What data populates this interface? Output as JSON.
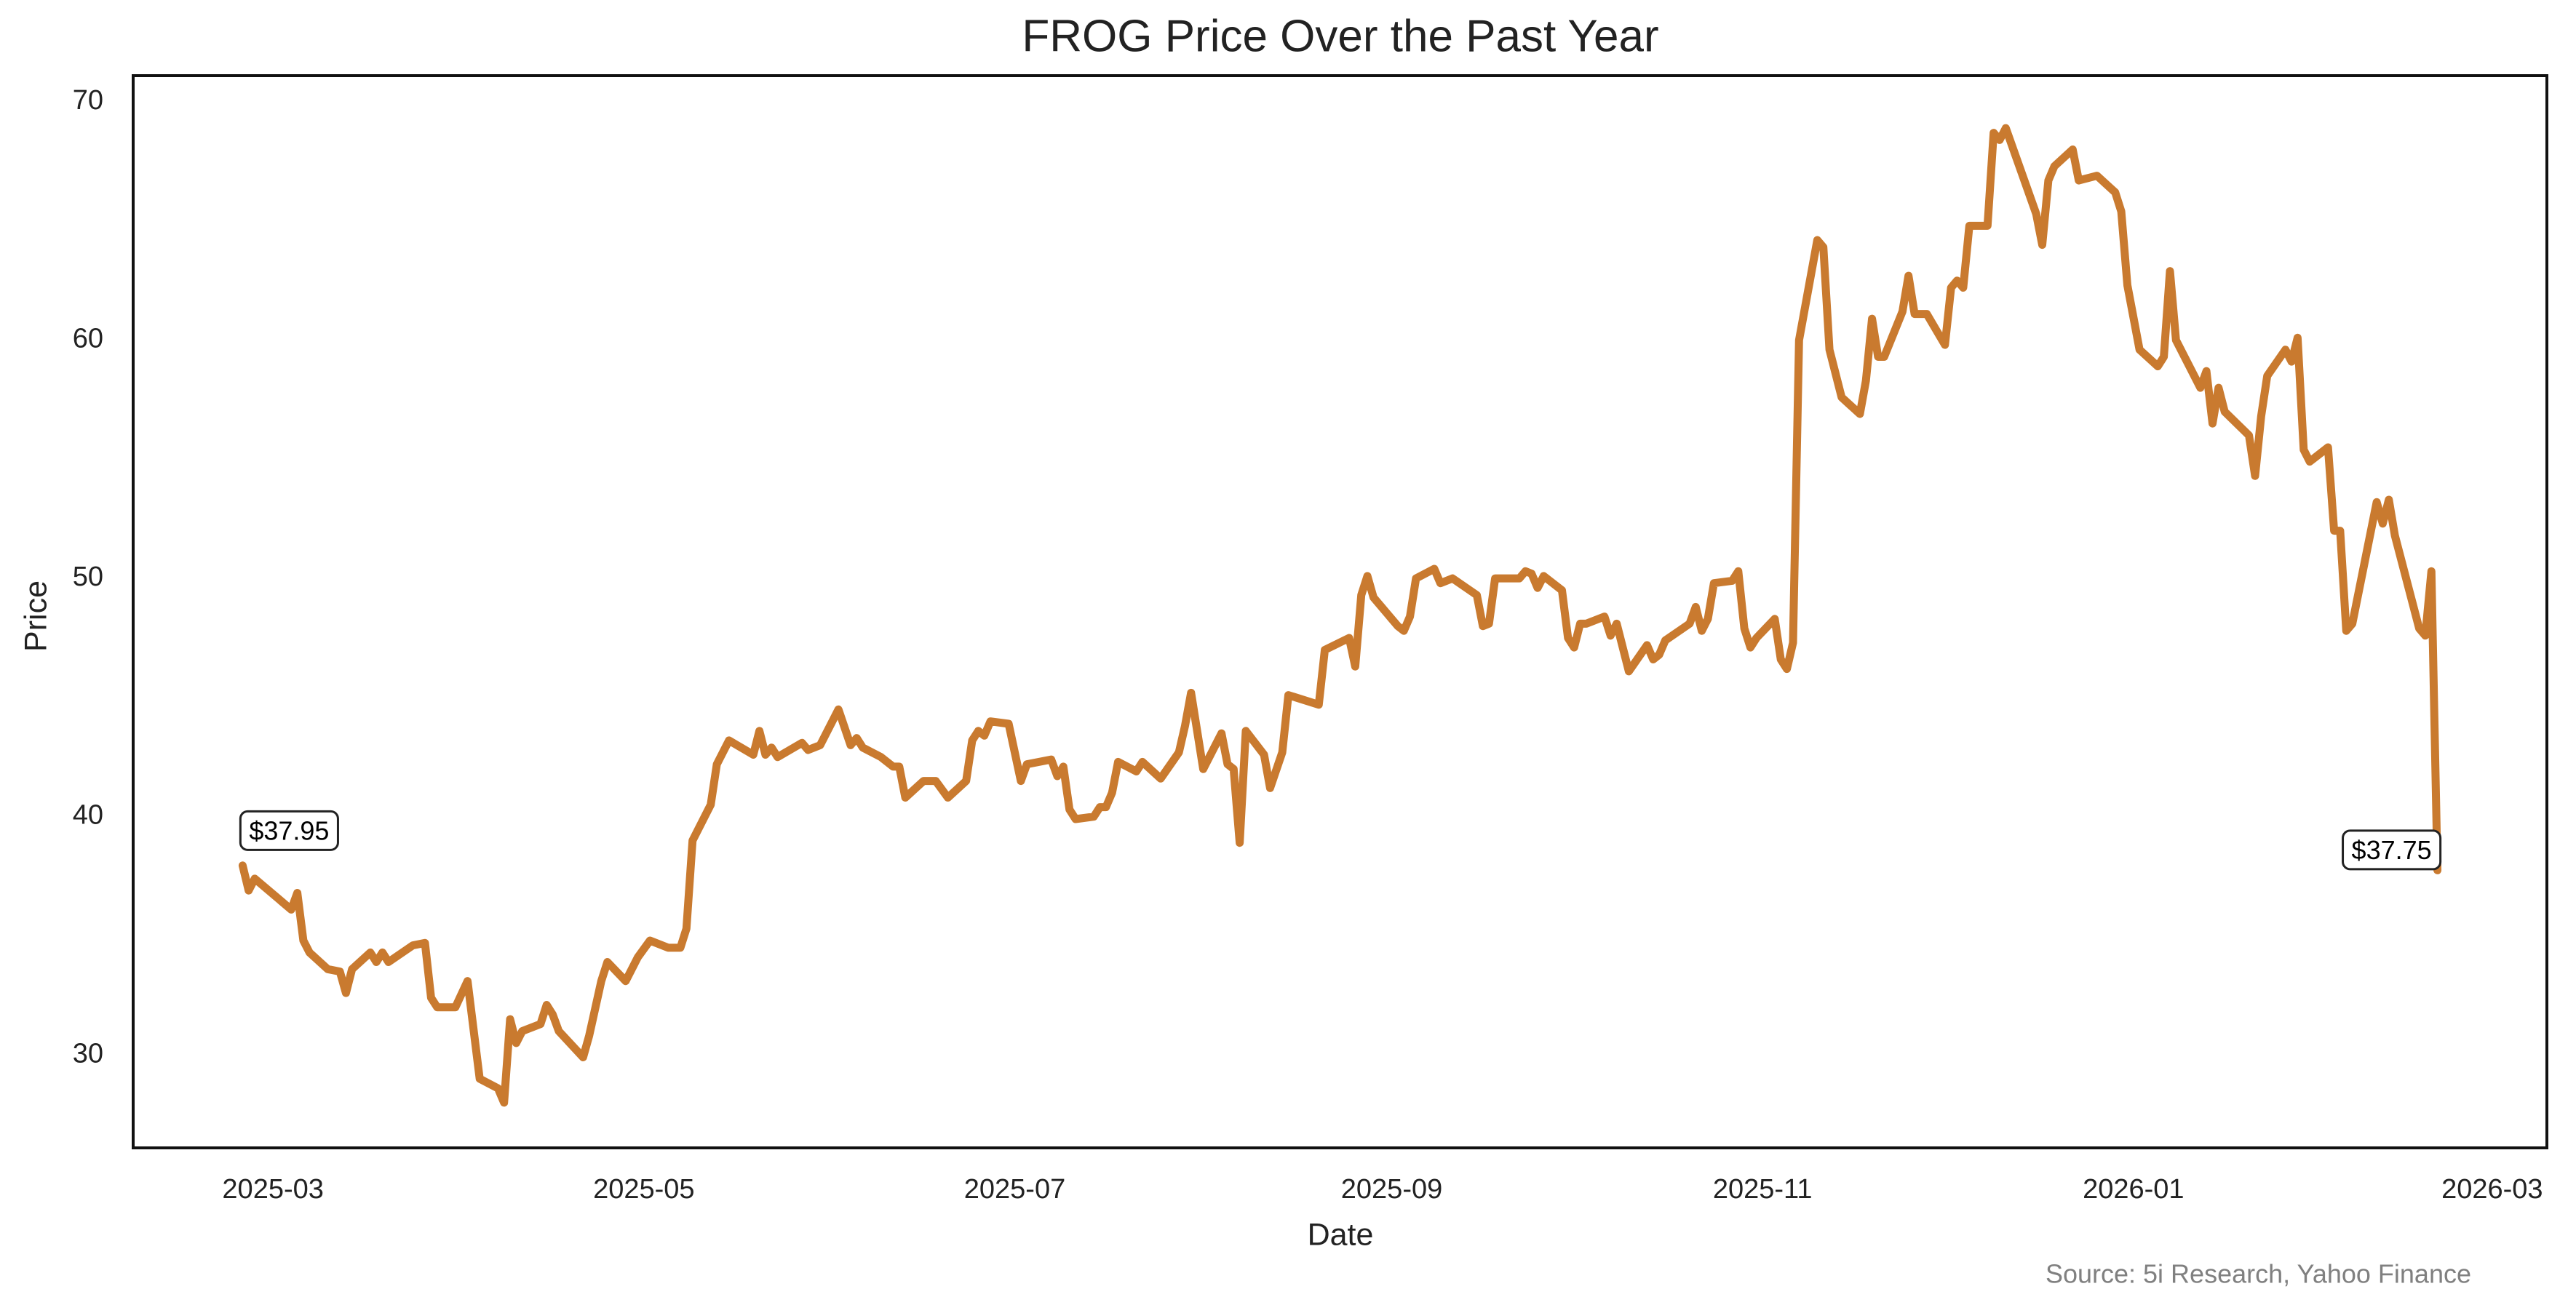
{
  "chart_data": {
    "type": "line",
    "title": "FROG Price Over the Past Year",
    "x_label": "Date",
    "y_label": "Price",
    "source": "Source: 5i Research, Yahoo Finance",
    "grid": false,
    "xlim": [
      "2025-02-06",
      "2026-03-10"
    ],
    "ylim": [
      26.1,
      71.1
    ],
    "xticks": [
      {
        "value": "2025-03-01",
        "label": "2025-03"
      },
      {
        "value": "2025-05-01",
        "label": "2025-05"
      },
      {
        "value": "2025-07-01",
        "label": "2025-07"
      },
      {
        "value": "2025-09-01",
        "label": "2025-09"
      },
      {
        "value": "2025-11-01",
        "label": "2025-11"
      },
      {
        "value": "2026-01-01",
        "label": "2026-01"
      },
      {
        "value": "2026-03-01",
        "label": "2026-03"
      }
    ],
    "yticks": [
      30,
      40,
      50,
      60,
      70
    ],
    "x": [
      "2025-02-24",
      "2025-02-25",
      "2025-02-26",
      "2025-03-04",
      "2025-03-05",
      "2025-03-06",
      "2025-03-07",
      "2025-03-10",
      "2025-03-12",
      "2025-03-13",
      "2025-03-14",
      "2025-03-17",
      "2025-03-18",
      "2025-03-19",
      "2025-03-20",
      "2025-03-24",
      "2025-03-26",
      "2025-03-27",
      "2025-03-28",
      "2025-03-31",
      "2025-04-02",
      "2025-04-04",
      "2025-04-07",
      "2025-04-08",
      "2025-04-09",
      "2025-04-10",
      "2025-04-11",
      "2025-04-14",
      "2025-04-15",
      "2025-04-16",
      "2025-04-17",
      "2025-04-21",
      "2025-04-22",
      "2025-04-24",
      "2025-04-25",
      "2025-04-28",
      "2025-04-30",
      "2025-05-02",
      "2025-05-05",
      "2025-05-07",
      "2025-05-08",
      "2025-05-09",
      "2025-05-12",
      "2025-05-13",
      "2025-05-15",
      "2025-05-19",
      "2025-05-20",
      "2025-05-21",
      "2025-05-22",
      "2025-05-23",
      "2025-05-27",
      "2025-05-28",
      "2025-05-30",
      "2025-06-02",
      "2025-06-04",
      "2025-06-05",
      "2025-06-06",
      "2025-06-09",
      "2025-06-11",
      "2025-06-12",
      "2025-06-13",
      "2025-06-16",
      "2025-06-17",
      "2025-06-18",
      "2025-06-20",
      "2025-06-23",
      "2025-06-24",
      "2025-06-25",
      "2025-06-26",
      "2025-06-27",
      "2025-06-30",
      "2025-07-02",
      "2025-07-03",
      "2025-07-07",
      "2025-07-08",
      "2025-07-09",
      "2025-07-10",
      "2025-07-11",
      "2025-07-14",
      "2025-07-15",
      "2025-07-16",
      "2025-07-17",
      "2025-07-18",
      "2025-07-21",
      "2025-07-22",
      "2025-07-25",
      "2025-07-28",
      "2025-07-29",
      "2025-07-30",
      "2025-08-01",
      "2025-08-04",
      "2025-08-05",
      "2025-08-06",
      "2025-08-07",
      "2025-08-08",
      "2025-08-11",
      "2025-08-12",
      "2025-08-14",
      "2025-08-15",
      "2025-08-20",
      "2025-08-21",
      "2025-08-25",
      "2025-08-26",
      "2025-08-27",
      "2025-08-28",
      "2025-08-29",
      "2025-09-02",
      "2025-09-03",
      "2025-09-04",
      "2025-09-05",
      "2025-09-08",
      "2025-09-09",
      "2025-09-11",
      "2025-09-15",
      "2025-09-16",
      "2025-09-17",
      "2025-09-18",
      "2025-09-22",
      "2025-09-23",
      "2025-09-24",
      "2025-09-25",
      "2025-09-26",
      "2025-09-29",
      "2025-09-30",
      "2025-10-01",
      "2025-10-02",
      "2025-10-03",
      "2025-10-06",
      "2025-10-07",
      "2025-10-08",
      "2025-10-10",
      "2025-10-13",
      "2025-10-14",
      "2025-10-15",
      "2025-10-16",
      "2025-10-20",
      "2025-10-21",
      "2025-10-22",
      "2025-10-23",
      "2025-10-24",
      "2025-10-27",
      "2025-10-28",
      "2025-10-29",
      "2025-10-30",
      "2025-10-31",
      "2025-11-03",
      "2025-11-04",
      "2025-11-05",
      "2025-11-06",
      "2025-11-07",
      "2025-11-10",
      "2025-11-11",
      "2025-11-12",
      "2025-11-14",
      "2025-11-17",
      "2025-11-18",
      "2025-11-19",
      "2025-11-20",
      "2025-11-21",
      "2025-11-24",
      "2025-11-25",
      "2025-11-26",
      "2025-11-28",
      "2025-12-01",
      "2025-12-02",
      "2025-12-03",
      "2025-12-04",
      "2025-12-05",
      "2025-12-08",
      "2025-12-09",
      "2025-12-10",
      "2025-12-11",
      "2025-12-16",
      "2025-12-17",
      "2025-12-18",
      "2025-12-19",
      "2025-12-22",
      "2025-12-23",
      "2025-12-26",
      "2025-12-29",
      "2025-12-30",
      "2025-12-31",
      "2026-01-02",
      "2026-01-05",
      "2026-01-06",
      "2026-01-07",
      "2026-01-08",
      "2026-01-12",
      "2026-01-13",
      "2026-01-14",
      "2026-01-15",
      "2026-01-16",
      "2026-01-20",
      "2026-01-21",
      "2026-01-22",
      "2026-01-23",
      "2026-01-26",
      "2026-01-27",
      "2026-01-28",
      "2026-01-29",
      "2026-01-30",
      "2026-02-02",
      "2026-02-03",
      "2026-02-04",
      "2026-02-05",
      "2026-02-06",
      "2026-02-10",
      "2026-02-11",
      "2026-02-12",
      "2026-02-13",
      "2026-02-17",
      "2026-02-18",
      "2026-02-19",
      "2026-02-20"
    ],
    "series": [
      {
        "name": "FROG",
        "color": "#c97a2f",
        "values": [
          37.95,
          36.9,
          37.4,
          36.1,
          36.8,
          34.8,
          34.3,
          33.6,
          33.5,
          32.6,
          33.6,
          34.3,
          33.9,
          34.3,
          33.9,
          34.6,
          34.7,
          32.4,
          32.0,
          32.0,
          33.1,
          29.0,
          28.6,
          28.0,
          31.5,
          30.5,
          31.0,
          31.3,
          32.1,
          31.7,
          31.0,
          29.9,
          30.8,
          33.1,
          33.9,
          33.1,
          34.1,
          34.8,
          34.5,
          34.5,
          35.3,
          39.0,
          40.5,
          42.2,
          43.2,
          42.6,
          43.6,
          42.6,
          42.9,
          42.5,
          43.1,
          42.8,
          43.0,
          44.5,
          43.0,
          43.3,
          42.9,
          42.5,
          42.1,
          42.1,
          40.8,
          41.5,
          41.5,
          41.5,
          40.8,
          41.5,
          43.2,
          43.6,
          43.4,
          44.0,
          43.9,
          41.5,
          42.2,
          42.4,
          41.7,
          42.1,
          40.3,
          39.9,
          40.0,
          40.4,
          40.4,
          41.0,
          42.3,
          41.9,
          42.3,
          41.6,
          42.7,
          43.8,
          45.2,
          42.0,
          43.5,
          42.2,
          42.0,
          38.9,
          43.6,
          42.6,
          41.2,
          42.7,
          45.1,
          44.7,
          47.0,
          47.5,
          46.3,
          49.3,
          50.1,
          49.2,
          48.0,
          47.8,
          48.4,
          50.0,
          50.4,
          49.8,
          50.0,
          49.3,
          48.0,
          48.1,
          50.0,
          50.0,
          50.3,
          50.2,
          49.6,
          50.1,
          49.5,
          47.5,
          47.1,
          48.1,
          48.1,
          48.4,
          47.6,
          48.1,
          46.1,
          47.2,
          46.6,
          46.8,
          47.4,
          48.1,
          48.8,
          47.8,
          48.3,
          49.8,
          49.9,
          50.3,
          47.9,
          47.1,
          47.5,
          48.3,
          46.6,
          46.2,
          47.3,
          60.0,
          64.2,
          63.9,
          59.6,
          57.6,
          56.9,
          58.3,
          60.9,
          59.3,
          59.3,
          61.2,
          62.7,
          61.1,
          61.1,
          59.8,
          62.2,
          62.5,
          62.2,
          64.8,
          64.8,
          68.7,
          68.4,
          68.9,
          65.3,
          64.0,
          66.7,
          67.3,
          68.0,
          66.7,
          66.9,
          66.2,
          65.4,
          62.3,
          59.6,
          58.9,
          59.3,
          62.9,
          60.0,
          58.0,
          58.7,
          56.5,
          58.0,
          57.0,
          56.0,
          54.3,
          56.8,
          58.5,
          59.6,
          59.1,
          60.1,
          55.4,
          54.9,
          55.5,
          52.0,
          52.0,
          47.8,
          48.1,
          53.2,
          52.3,
          53.3,
          51.8,
          47.9,
          47.6,
          50.3,
          37.75
        ]
      }
    ],
    "annotations": [
      {
        "x": "2025-02-24",
        "y": 37.95,
        "label": "$37.95"
      },
      {
        "x": "2026-02-20",
        "y": 37.75,
        "label": "$37.75"
      }
    ]
  }
}
